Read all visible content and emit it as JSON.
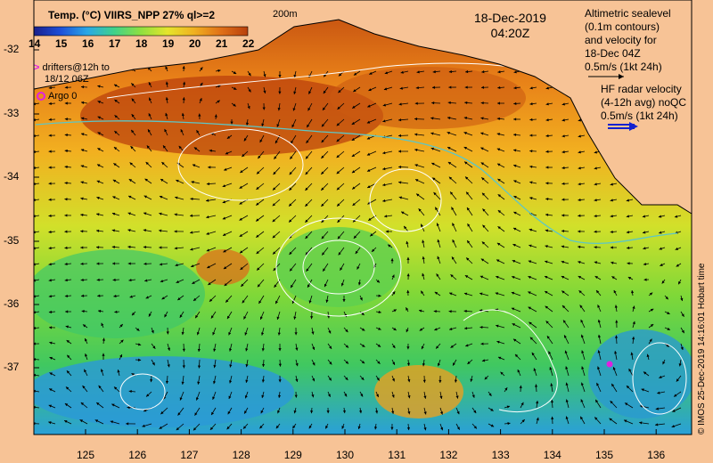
{
  "colorbar": {
    "title": "Temp. (°C) VIIRS_NPP 27% ql>=2",
    "ticks": [
      "14",
      "15",
      "16",
      "17",
      "18",
      "19",
      "20",
      "21",
      "22"
    ],
    "scale_label": "200m"
  },
  "timestamp": {
    "date": "18-Dec-2019",
    "time": "04:20Z"
  },
  "legend": {
    "altimetry": [
      "Altimetric sealevel",
      "(0.1m contours)",
      "and velocity for",
      "18-Dec 04Z",
      "0.5m/s (1kt 24h)"
    ],
    "hf_radar": [
      "HF radar velocity",
      "(4-12h avg) noQC",
      "0.5m/s (1kt 24h)"
    ],
    "drifters": [
      "drifters@12h to",
      "18/12 06Z"
    ],
    "drifter_marker": ">",
    "argo": "Argo 0"
  },
  "axes": {
    "lat_labels": [
      "-32",
      "-33",
      "-34",
      "-35",
      "-36",
      "-37"
    ],
    "lon_labels": [
      "125",
      "126",
      "127",
      "128",
      "129",
      "130",
      "131",
      "132",
      "133",
      "134",
      "135",
      "136"
    ]
  },
  "credit": "© IMOS 25-Dec-2019 14:16:01 Hobart time",
  "colors": {
    "land": "#f7c396",
    "sst_scale": [
      "#1a1f8c",
      "#1d4fd8",
      "#2aa8e6",
      "#3fd28a",
      "#8fe040",
      "#e5e52c",
      "#f0b020",
      "#e07018",
      "#b8400c"
    ],
    "contour": "#ffffff",
    "isobath": "#5dc6c6",
    "arrow": "#000000",
    "hf_arrow": "#1020d0",
    "drifter": "#e020e0"
  }
}
